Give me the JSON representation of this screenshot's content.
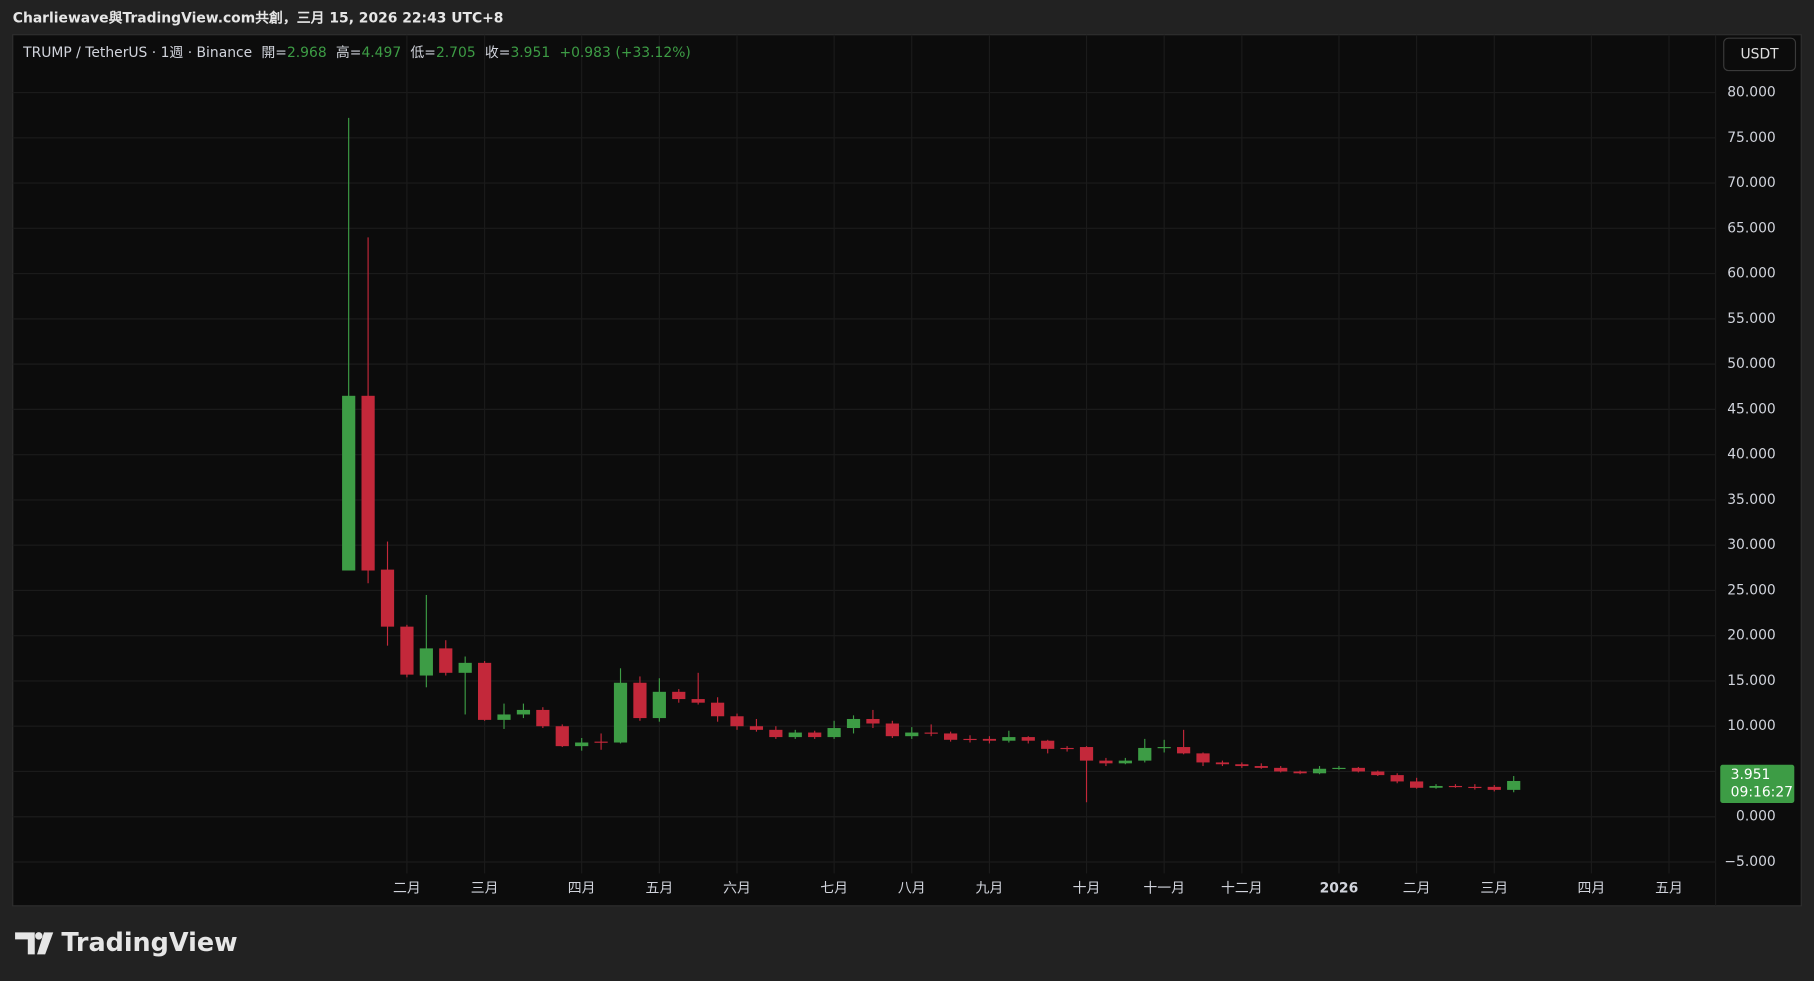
{
  "header": {
    "attribution": "Charliewave與TradingView.com共創，三月 15, 2026 22:43 UTC+8"
  },
  "footer": {
    "brand": "TradingView"
  },
  "chart_data": {
    "type": "candlestick",
    "title": "TRUMP / TetherUS · 1週 · Binance",
    "currency": "USDT",
    "up_color": "#3d9c45",
    "down_color": "#c3283a",
    "grid": true,
    "open": [
      27.2,
      46.5,
      27.3,
      21.0,
      15.6,
      18.6,
      15.9,
      17.0,
      10.7,
      11.3,
      11.8,
      10.0,
      7.8,
      8.3,
      8.2,
      14.8,
      10.9,
      13.8,
      13.0,
      12.6,
      11.1,
      10.0,
      9.6,
      8.8,
      9.3,
      8.8,
      9.8,
      10.8,
      10.3,
      8.9,
      9.3,
      9.2,
      8.6,
      8.6,
      8.4,
      8.8,
      8.4,
      7.6,
      7.7,
      6.2,
      5.9,
      6.2,
      7.6,
      7.7,
      7.0,
      6.0,
      5.8,
      5.6,
      5.4,
      5.0,
      4.8,
      5.3,
      5.4,
      5.0,
      4.6,
      3.9,
      3.2,
      3.4,
      3.3,
      3.3,
      2.968
    ],
    "high": [
      77.2,
      64.0,
      30.4,
      21.2,
      24.5,
      19.5,
      17.7,
      17.2,
      12.5,
      12.5,
      12.1,
      10.2,
      8.7,
      9.2,
      16.4,
      15.5,
      15.3,
      14.1,
      15.9,
      13.2,
      11.4,
      10.8,
      10.0,
      9.6,
      9.5,
      10.6,
      11.2,
      11.8,
      10.6,
      9.9,
      10.2,
      9.4,
      9.0,
      8.9,
      9.5,
      8.9,
      8.5,
      7.8,
      7.8,
      6.5,
      6.5,
      8.6,
      8.5,
      9.6,
      7.1,
      6.2,
      6.0,
      5.9,
      5.6,
      5.1,
      5.6,
      5.6,
      5.5,
      5.1,
      4.8,
      4.3,
      3.6,
      3.6,
      3.6,
      3.5,
      4.497
    ],
    "low": [
      27.2,
      25.8,
      18.9,
      15.4,
      14.3,
      15.6,
      11.3,
      10.6,
      9.7,
      10.9,
      9.8,
      7.7,
      7.3,
      7.4,
      8.1,
      10.6,
      10.5,
      12.6,
      12.4,
      10.5,
      9.6,
      9.4,
      8.6,
      8.6,
      8.6,
      8.6,
      9.2,
      9.8,
      8.7,
      8.6,
      8.9,
      8.3,
      8.2,
      8.1,
      8.2,
      8.1,
      7.0,
      7.2,
      1.6,
      5.6,
      5.8,
      6.0,
      7.1,
      6.9,
      5.6,
      5.6,
      5.4,
      5.3,
      4.9,
      4.7,
      4.7,
      5.2,
      4.9,
      4.5,
      3.7,
      3.1,
      3.1,
      3.2,
      3.0,
      2.8,
      2.705
    ],
    "close": [
      46.5,
      27.2,
      21.0,
      15.7,
      18.6,
      15.9,
      17.0,
      10.7,
      11.3,
      11.8,
      10.0,
      7.8,
      8.2,
      8.2,
      14.8,
      10.9,
      13.8,
      13.0,
      12.6,
      11.1,
      10.0,
      9.6,
      8.8,
      9.3,
      8.8,
      9.8,
      10.8,
      10.3,
      8.9,
      9.3,
      9.2,
      8.5,
      8.5,
      8.4,
      8.8,
      8.4,
      7.5,
      7.5,
      6.2,
      5.9,
      6.2,
      7.6,
      7.7,
      7.0,
      6.0,
      5.8,
      5.6,
      5.4,
      5.0,
      4.8,
      5.3,
      5.4,
      5.0,
      4.6,
      3.9,
      3.2,
      3.4,
      3.3,
      3.2,
      2.97,
      3.951
    ],
    "legend": {
      "labels": [
        "開=",
        "高=",
        "低=",
        "收="
      ],
      "change": "+0.983",
      "change_pct": "(+33.12%)"
    },
    "countdown": "09:16:27",
    "ylim": [
      -6.26,
      86.39
    ],
    "yticks": [
      {
        "value": -5,
        "label": "−5.000"
      },
      {
        "value": 0,
        "label": "0.000"
      },
      {
        "value": 5,
        "label": "5.000"
      },
      {
        "value": 10,
        "label": "10.000"
      },
      {
        "value": 15,
        "label": "15.000"
      },
      {
        "value": 20,
        "label": "20.000"
      },
      {
        "value": 25,
        "label": "25.000"
      },
      {
        "value": 30,
        "label": "30.000"
      },
      {
        "value": 35,
        "label": "35.000"
      },
      {
        "value": 40,
        "label": "40.000"
      },
      {
        "value": 45,
        "label": "45.000"
      },
      {
        "value": 50,
        "label": "50.000"
      },
      {
        "value": 55,
        "label": "55.000"
      },
      {
        "value": 60,
        "label": "60.000"
      },
      {
        "value": 65,
        "label": "65.000"
      },
      {
        "value": 70,
        "label": "70.000"
      },
      {
        "value": 75,
        "label": "75.000"
      },
      {
        "value": 80,
        "label": "80.000"
      }
    ],
    "xlim": [
      -17.3,
      70.4
    ],
    "xticks": [
      {
        "value": 3,
        "label": "二月"
      },
      {
        "value": 7,
        "label": "三月"
      },
      {
        "value": 12,
        "label": "四月"
      },
      {
        "value": 16,
        "label": "五月"
      },
      {
        "value": 20,
        "label": "六月"
      },
      {
        "value": 25,
        "label": "七月"
      },
      {
        "value": 29,
        "label": "八月"
      },
      {
        "value": 33,
        "label": "九月"
      },
      {
        "value": 38,
        "label": "十月"
      },
      {
        "value": 42,
        "label": "十一月"
      },
      {
        "value": 46,
        "label": "十二月"
      },
      {
        "value": 51,
        "label": "2026"
      },
      {
        "value": 55,
        "label": "二月"
      },
      {
        "value": 59,
        "label": "三月"
      },
      {
        "value": 64,
        "label": "四月"
      },
      {
        "value": 68,
        "label": "五月"
      }
    ]
  }
}
